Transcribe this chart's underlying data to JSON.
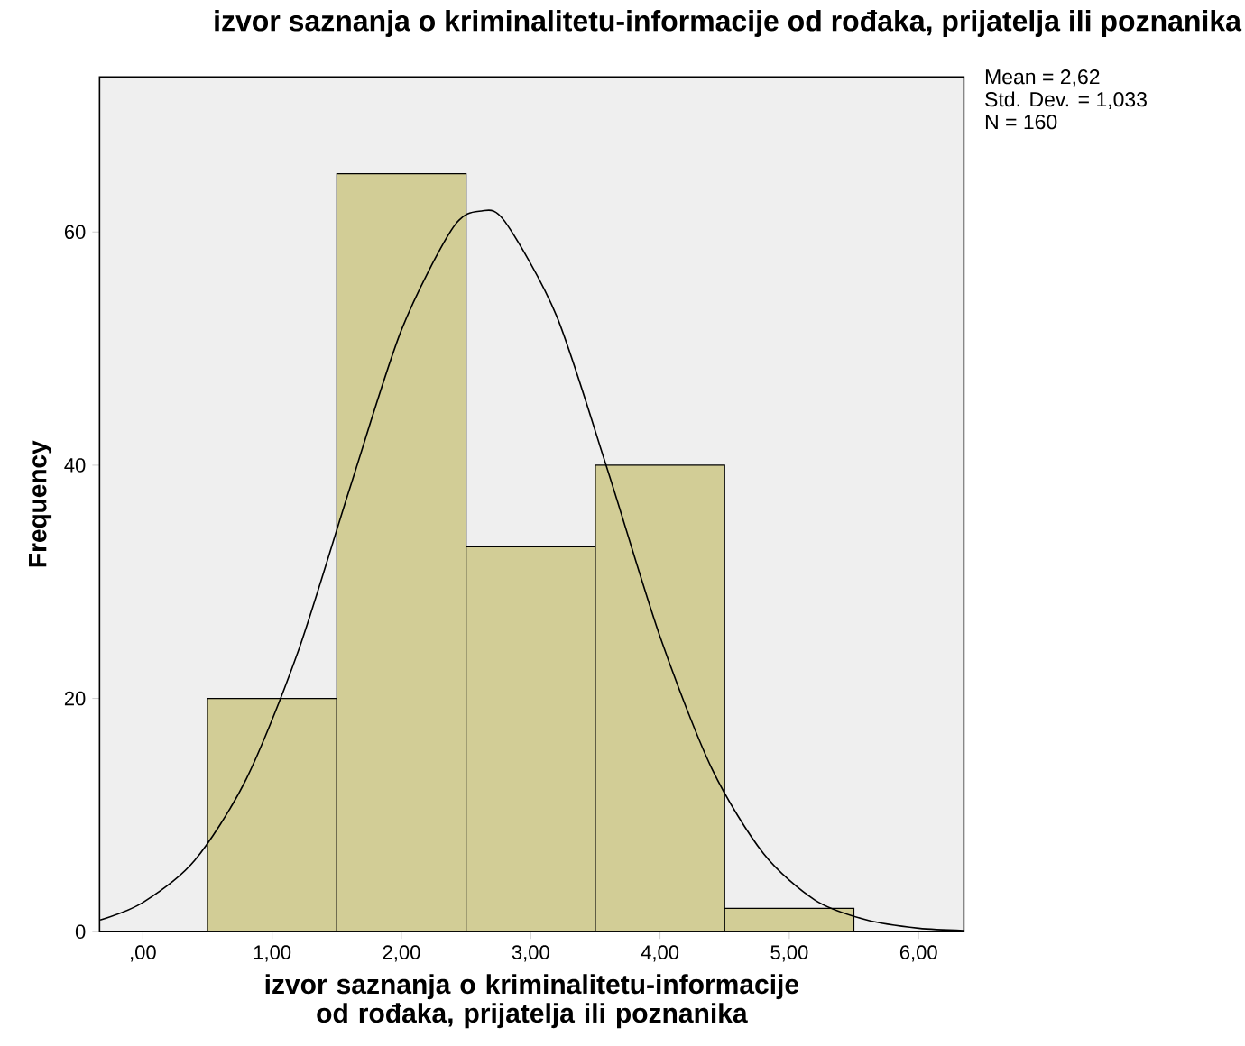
{
  "chart_data": {
    "type": "histogram",
    "title": "izvor saznanja o kriminalitetu-informacije od rođaka, prijatelja ili poznanika",
    "xlabel": "izvor saznanja o kriminalitetu-informacije od rođaka, prijatelja ili poznanika",
    "ylabel": "Frequency",
    "bins": [
      0.5,
      1.5,
      2.5,
      3.5,
      4.5,
      5.5
    ],
    "values": [
      20,
      65,
      33,
      40,
      2
    ],
    "color": "#d2cd96",
    "series": [
      {
        "type": "line",
        "color": "#000000",
        "x": [
          -0.33,
          0,
          0.4,
          0.8,
          1.2,
          1.6,
          2.0,
          2.4,
          2.62,
          2.8,
          3.2,
          3.6,
          4.0,
          4.4,
          4.8,
          5.2,
          5.6,
          6.0,
          6.35
        ],
        "values": [
          1.0,
          2.5,
          6.1,
          13.1,
          24.0,
          38.0,
          51.6,
          60.4,
          61.8,
          60.9,
          52.8,
          39.4,
          25.3,
          14.0,
          6.7,
          2.7,
          1.0,
          0.3,
          0.1
        ]
      }
    ],
    "xlim": [
      -0.335,
      6.35
    ],
    "xticks": [
      {
        "value": 0,
        "label": ",00"
      },
      {
        "value": 1,
        "label": "1,00"
      },
      {
        "value": 2,
        "label": "2,00"
      },
      {
        "value": 3,
        "label": "3,00"
      },
      {
        "value": 4,
        "label": "4,00"
      },
      {
        "value": 5,
        "label": "5,00"
      },
      {
        "value": 6,
        "label": "6,00"
      }
    ],
    "ylim": [
      0,
      73.3
    ],
    "yticks": [
      0,
      20,
      40,
      60
    ],
    "annotations": [
      "Mean = 2,62",
      "Std. Dev. = 1,033",
      "N = 160"
    ]
  }
}
